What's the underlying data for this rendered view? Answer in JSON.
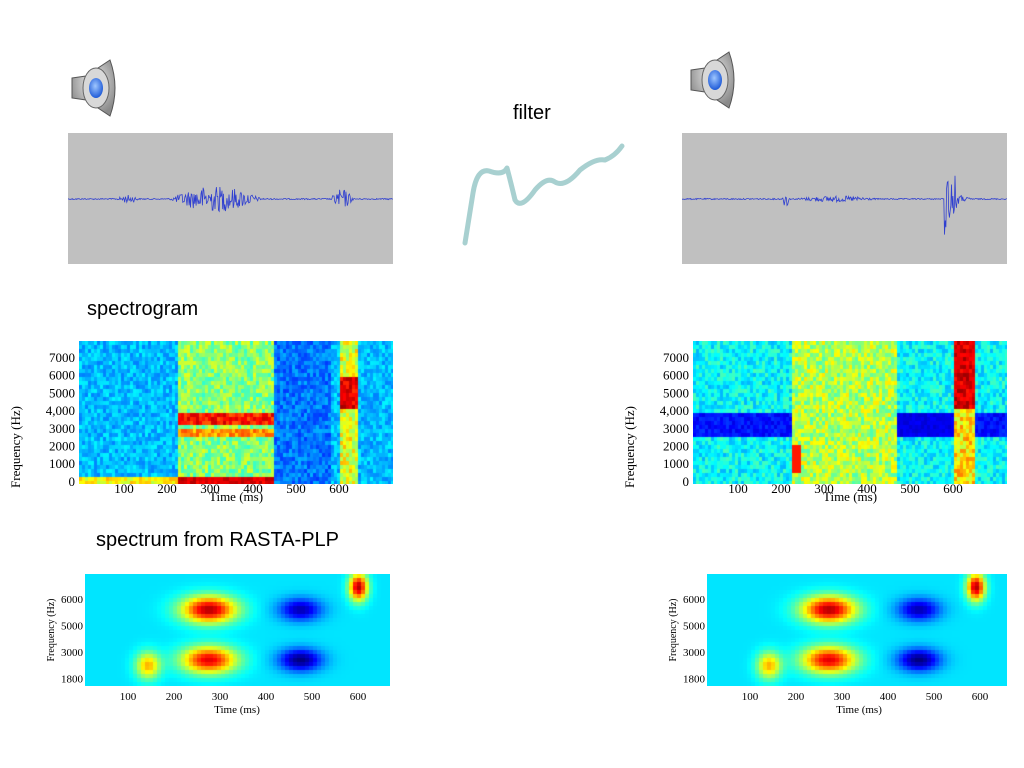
{
  "labels": {
    "filter": "filter",
    "spectrogram": "spectrogram",
    "rasta": "spectrum from RASTA-PLP"
  },
  "icons": {
    "speaker": "speaker-icon",
    "filter_curve": "filter-curve"
  },
  "colors": {
    "wave_bg": "#c0c0c0",
    "wave": "#2f3fd0",
    "filter_curve": "#a8d0d0"
  },
  "spectrogram": {
    "ylabel": "Frequency (Hz)",
    "xlabel": "Time (ms)",
    "yticks": [
      "7000",
      "6000",
      "5000",
      "4,000",
      "3000",
      "2000",
      "1000",
      "0"
    ],
    "xticks": [
      "100",
      "200",
      "300",
      "400",
      "500",
      "600"
    ]
  },
  "rasta": {
    "ylabel": "Frequency (Hz)",
    "xlabel": "Time (ms)",
    "yticks": [
      "6000",
      "5000",
      "3000",
      "1800"
    ],
    "xticks": [
      "100",
      "200",
      "300",
      "400",
      "500",
      "600"
    ]
  }
}
